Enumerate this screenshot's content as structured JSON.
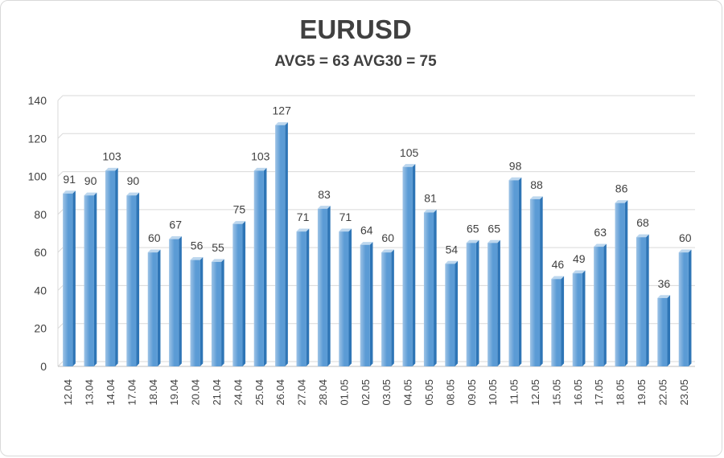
{
  "chart_data": {
    "type": "bar",
    "title": "EURUSD",
    "subtitle": "AVG5 = 63 AVG30 = 75",
    "xlabel": "",
    "ylabel": "",
    "ylim": [
      0,
      140
    ],
    "yticks": [
      0,
      20,
      40,
      60,
      80,
      100,
      120,
      140
    ],
    "grid": true,
    "legend": "none",
    "categories": [
      "12.04",
      "13.04",
      "14.04",
      "17.04",
      "18.04",
      "19.04",
      "20.04",
      "21.04",
      "24.04",
      "25.04",
      "26.04",
      "27.04",
      "28.04",
      "01.05",
      "02.05",
      "03.05",
      "04.05",
      "05.05",
      "08.05",
      "09.05",
      "10.05",
      "11.05",
      "12.05",
      "15.05",
      "16.05",
      "17.05",
      "18.05",
      "19.05",
      "22.05",
      "23.05"
    ],
    "values": [
      91,
      90,
      103,
      90,
      60,
      67,
      56,
      55,
      75,
      103,
      127,
      71,
      83,
      71,
      64,
      60,
      105,
      81,
      54,
      65,
      65,
      98,
      88,
      46,
      49,
      63,
      86,
      68,
      36,
      60
    ],
    "colors": {
      "bar_front": "#5b9bd5",
      "bar_light": "#9dc3e6",
      "bar_side": "#2e75b6",
      "bar_top": "#bdd7ee",
      "grid": "#d9d9d9",
      "text": "#404040"
    }
  }
}
